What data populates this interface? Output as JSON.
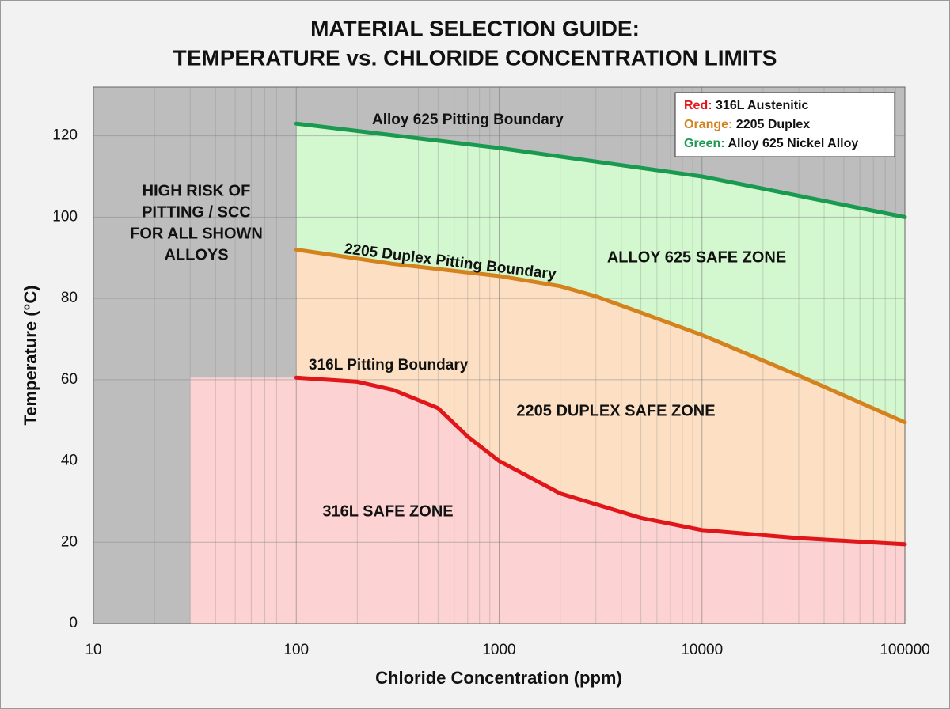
{
  "chart_data": {
    "type": "line",
    "title": "MATERIAL SELECTION GUIDE:",
    "subtitle": "TEMPERATURE vs. CHLORIDE CONCENTRATION LIMITS",
    "x_label": "Chloride Concentration (ppm)",
    "y_label": "Temperature (°C)",
    "x_scale": "log",
    "xlim": [
      10,
      100000
    ],
    "xticks": [
      10,
      100,
      1000,
      10000,
      100000
    ],
    "ylim": [
      0,
      132
    ],
    "yticks": [
      0,
      20,
      40,
      60,
      80,
      100,
      120
    ],
    "grid": true,
    "legend_position": "upper right",
    "background_color": "#bdbdbd",
    "series": [
      {
        "name": "316L Austenitic",
        "color_name": "Red:",
        "color": "#e0161a",
        "boundary_label": "316L Pitting Boundary",
        "x": [
          100,
          200,
          300,
          500,
          700,
          1000,
          2000,
          5000,
          10000,
          30000,
          100000
        ],
        "values": [
          60.5,
          59.5,
          57.5,
          53,
          46,
          40,
          32,
          26,
          23,
          21,
          19.5
        ]
      },
      {
        "name": "2205 Duplex",
        "color_name": "Orange:",
        "color": "#d4821e",
        "boundary_label": "2205 Duplex Pitting Boundary",
        "x": [
          100,
          300,
          1000,
          2000,
          3000,
          5000,
          10000,
          30000,
          100000
        ],
        "values": [
          92,
          88.5,
          85.5,
          83,
          80.5,
          76.5,
          71,
          61,
          49.5
        ]
      },
      {
        "name": "Alloy 625 Nickel Alloy",
        "color_name": "Green:",
        "color": "#1a9a50",
        "boundary_label": "Alloy 625 Pitting Boundary",
        "x": [
          100,
          1000,
          10000,
          100000
        ],
        "values": [
          123,
          117,
          110,
          100
        ]
      }
    ],
    "zones": [
      {
        "label": "316L SAFE ZONE",
        "color": "#fcd2d2",
        "x_start": 30
      },
      {
        "label": "2205 DUPLEX SAFE ZONE",
        "color": "#fde0c4"
      },
      {
        "label": "ALLOY 625 SAFE ZONE",
        "color": "#d3f8cf"
      }
    ],
    "high_risk_label": [
      "HIGH RISK OF",
      "PITTING / SCC",
      "FOR ALL SHOWN",
      "ALLOYS"
    ]
  }
}
